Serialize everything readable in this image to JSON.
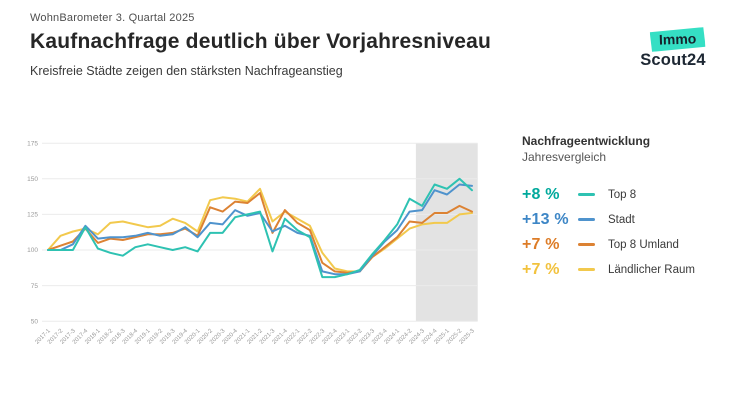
{
  "header": {
    "eyebrow": "WohnBarometer 3. Quartal 2025",
    "title": "Kaufnachfrage deutlich über Vorjahresniveau",
    "subtitle": "Kreisfreie Städte zeigen den stärksten Nachfrageanstieg"
  },
  "logo": {
    "badge_text": "Immo",
    "name_text": "Scout24",
    "badge_color": "#35dfc4"
  },
  "legend": {
    "title": "Nachfrageentwicklung",
    "subtitle": "Jahresvergleich",
    "items": [
      {
        "delta": "+8 %",
        "label": "Top 8",
        "delta_color": "#00a99c",
        "line_color": "#2ec2b2"
      },
      {
        "delta": "+13 %",
        "label": "Stadt",
        "delta_color": "#3d86c6",
        "line_color": "#4f93cd"
      },
      {
        "delta": "+7 %",
        "label": "Top 8 Umland",
        "delta_color": "#dd7c27",
        "line_color": "#dc8233"
      },
      {
        "delta": "+7 %",
        "label": "Ländlicher Raum",
        "delta_color": "#f2c23d",
        "line_color": "#f2c94d"
      }
    ]
  },
  "chart_data": {
    "type": "line",
    "title": "Nachfrageentwicklung",
    "subtitle": "Jahresvergleich",
    "grid": true,
    "legend_position": "right",
    "ylim": [
      50,
      175
    ],
    "yticks": [
      50,
      75,
      100,
      125,
      150,
      175
    ],
    "baseline_value": 100,
    "highlight_region": {
      "from_label": "2024-3",
      "to_label": "2025-3",
      "color": "#e3e3e3"
    },
    "x_labels": [
      "2017-1",
      "2017-2",
      "2017-3",
      "2017-4",
      "2018-1",
      "2018-2",
      "2018-3",
      "2018-4",
      "2019-1",
      "2019-2",
      "2019-3",
      "2019-4",
      "2020-1",
      "2020-2",
      "2020-3",
      "2020-4",
      "2021-1",
      "2021-2",
      "2021-3",
      "2021-4",
      "2022-1",
      "2022-2",
      "2022-3",
      "2022-4",
      "2023-1",
      "2023-2",
      "2023-3",
      "2023-4",
      "2024-1",
      "2024-2",
      "2024-3",
      "2024-4",
      "2025-1",
      "2025-2",
      "2025-3"
    ],
    "series": [
      {
        "name": "Ländlicher Raum",
        "color": "#f2c94d",
        "yoy_change": "+7 %",
        "values": [
          100,
          110,
          113,
          115,
          111,
          119,
          120,
          118,
          116,
          117,
          122,
          119,
          113,
          135,
          137,
          136,
          134,
          143,
          120,
          127,
          122,
          117,
          98,
          87,
          85,
          85,
          95,
          101,
          108,
          115,
          118,
          119,
          119,
          125,
          126
        ]
      },
      {
        "name": "Top 8 Umland",
        "color": "#dc8233",
        "yoy_change": "+7 %",
        "values": [
          100,
          103,
          106,
          115,
          105,
          108,
          107,
          109,
          111,
          111,
          112,
          115,
          110,
          130,
          127,
          134,
          133,
          140,
          112,
          128,
          119,
          114,
          91,
          85,
          84,
          85,
          95,
          102,
          109,
          120,
          119,
          126,
          126,
          131,
          127
        ]
      },
      {
        "name": "Stadt",
        "color": "#4f93cd",
        "yoy_change": "+13 %",
        "values": [
          100,
          100,
          104,
          117,
          108,
          109,
          109,
          110,
          112,
          110,
          111,
          116,
          109,
          119,
          118,
          128,
          124,
          126,
          113,
          117,
          112,
          110,
          85,
          83,
          83,
          85,
          96,
          106,
          114,
          127,
          128,
          142,
          139,
          146,
          145
        ]
      },
      {
        "name": "Top 8",
        "color": "#2ec2b2",
        "yoy_change": "+8 %",
        "values": [
          100,
          100,
          100,
          116,
          101,
          98,
          96,
          102,
          104,
          102,
          100,
          102,
          99,
          112,
          112,
          123,
          125,
          127,
          99,
          122,
          114,
          109,
          81,
          81,
          83,
          86,
          97,
          107,
          118,
          136,
          131,
          146,
          143,
          150,
          142
        ]
      }
    ]
  }
}
